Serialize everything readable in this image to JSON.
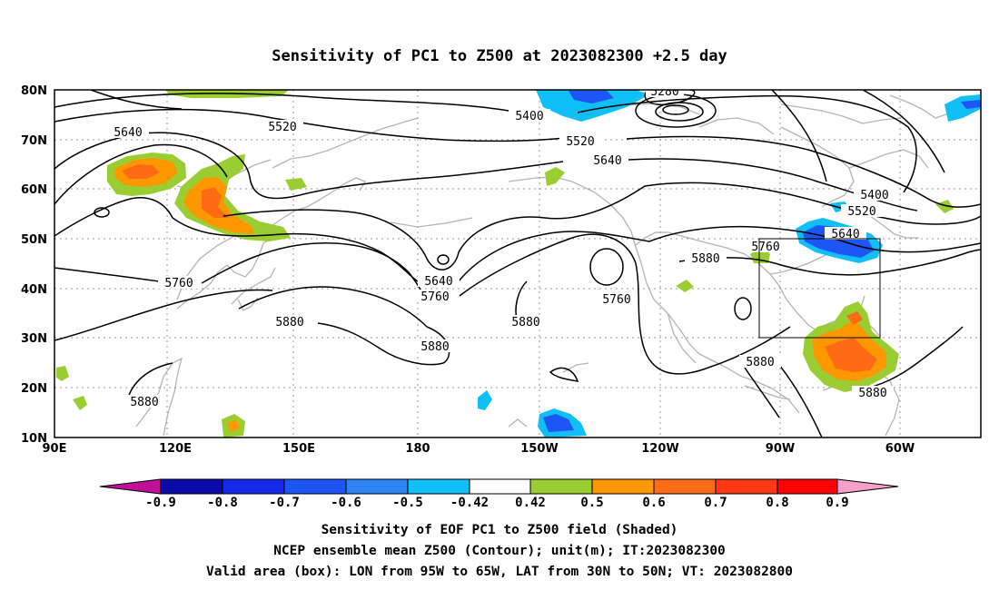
{
  "title": "Sensitivity of PC1 to Z500 at 2023082300 +2.5 day",
  "lat_ticks": [
    "80N",
    "70N",
    "60N",
    "50N",
    "40N",
    "30N",
    "20N",
    "10N"
  ],
  "lon_ticks": [
    "90E",
    "120E",
    "150E",
    "180",
    "150W",
    "120W",
    "90W",
    "60W"
  ],
  "colorbar": {
    "labels": [
      "-0.9",
      "-0.8",
      "-0.7",
      "-0.6",
      "-0.5",
      "-0.42",
      "0.42",
      "0.5",
      "0.6",
      "0.7",
      "0.8",
      "0.9"
    ],
    "colors": [
      "#c0109a",
      "#0a0aa8",
      "#1428e8",
      "#1e55f5",
      "#2d84f5",
      "#10bff5",
      "#ffffff",
      "#9acd32",
      "#ff9800",
      "#ff6a14",
      "#ff3a14",
      "#ff0000",
      "#f5a0c8"
    ]
  },
  "contour_labels": [
    "5280",
    "5400",
    "5520",
    "5640",
    "5760",
    "5880"
  ],
  "colors": {
    "contour": "#000000",
    "coastline": "#b4b4b4",
    "grid": "#9a9a9a",
    "valid_box": "#000000"
  },
  "footer": {
    "line1": "Sensitivity of EOF PC1 to Z500 field (Shaded)",
    "line2": "NCEP ensemble mean Z500 (Contour); unit(m); IT:2023082300",
    "line3": "Valid area (box): LON from 95W to 65W, LAT from 30N to 50N; VT: 2023082800"
  }
}
